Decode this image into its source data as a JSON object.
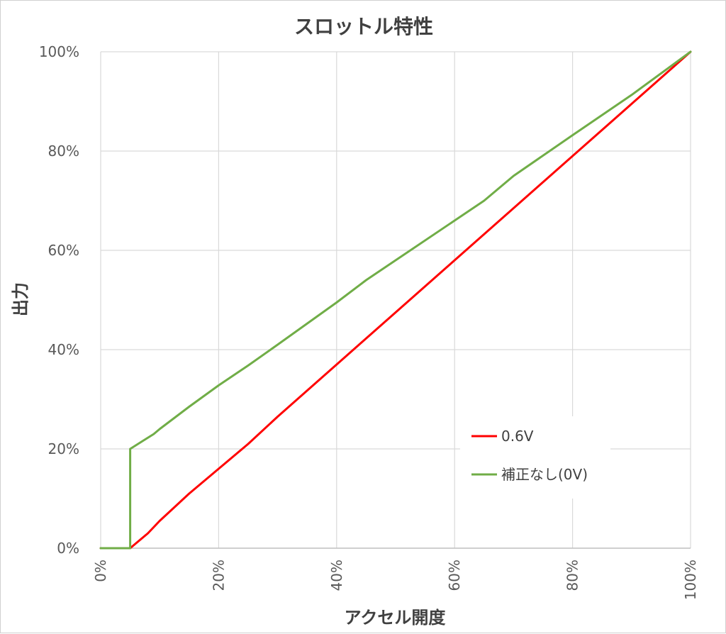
{
  "chart_data": {
    "type": "line",
    "title": "スロットル特性",
    "xlabel": "アクセル開度",
    "ylabel": "出力",
    "xlim": [
      0,
      100
    ],
    "ylim": [
      0,
      100
    ],
    "x_ticks": [
      "0%",
      "20%",
      "40%",
      "60%",
      "80%",
      "100%"
    ],
    "y_ticks": [
      "0%",
      "20%",
      "40%",
      "60%",
      "80%",
      "100%"
    ],
    "grid": true,
    "legend_position": "lower-right",
    "series": [
      {
        "name": "0.6V",
        "color": "#ff0000",
        "points": [
          [
            0,
            0
          ],
          [
            5,
            0
          ],
          [
            6,
            1
          ],
          [
            8,
            3
          ],
          [
            10,
            5.5
          ],
          [
            15,
            11
          ],
          [
            20,
            16
          ],
          [
            25,
            21
          ],
          [
            30,
            26.5
          ],
          [
            40,
            37
          ],
          [
            50,
            47.5
          ],
          [
            60,
            58
          ],
          [
            70,
            68.5
          ],
          [
            80,
            79
          ],
          [
            90,
            89.5
          ],
          [
            100,
            100
          ]
        ]
      },
      {
        "name": "補正なし(0V)",
        "color": "#70ad47",
        "points": [
          [
            0,
            0
          ],
          [
            5,
            0
          ],
          [
            5,
            20
          ],
          [
            7,
            21.5
          ],
          [
            9,
            23
          ],
          [
            10,
            24
          ],
          [
            15,
            28.5
          ],
          [
            20,
            32.8
          ],
          [
            25,
            36.8
          ],
          [
            30,
            41
          ],
          [
            40,
            49.5
          ],
          [
            45,
            54
          ],
          [
            50,
            58
          ],
          [
            60,
            66
          ],
          [
            65,
            70
          ],
          [
            70,
            75
          ],
          [
            80,
            83.2
          ],
          [
            90,
            91.3
          ],
          [
            100,
            100
          ]
        ]
      }
    ]
  }
}
